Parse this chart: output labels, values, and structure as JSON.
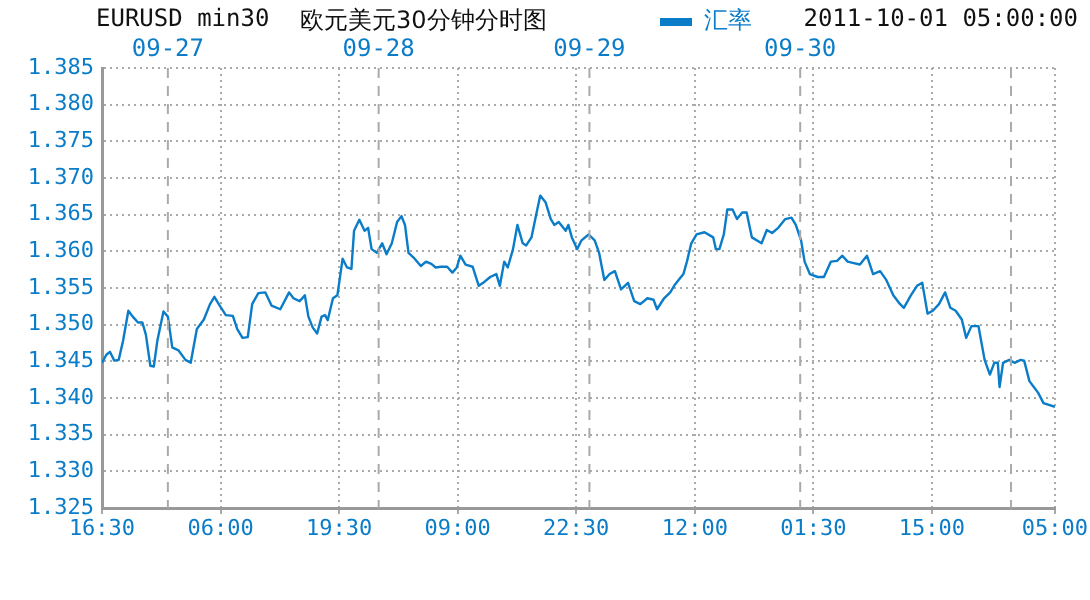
{
  "chart_data": {
    "type": "line",
    "title": "欧元美元30分钟分时图",
    "subtitle": "EURUSD min30",
    "annotations": [
      "2011-10-01 05:00:00"
    ],
    "legend": "top",
    "grid": true,
    "marker": "none",
    "line_style": "solid",
    "xlim": [
      "2011-09-26T16:30",
      "2011-10-01T05:00"
    ],
    "xticks": [
      {
        "value": "2011-09-26T16:30",
        "label": "16:30"
      },
      {
        "value": "2011-09-27T06:00",
        "label": "06:00"
      },
      {
        "value": "2011-09-27T19:30",
        "label": "19:30"
      },
      {
        "value": "2011-09-28T09:00",
        "label": "09:00"
      },
      {
        "value": "2011-09-28T22:30",
        "label": "22:30"
      },
      {
        "value": "2011-09-29T12:00",
        "label": "12:00"
      },
      {
        "value": "2011-09-30T01:30",
        "label": "01:30"
      },
      {
        "value": "2011-09-30T15:00",
        "label": "15:00"
      },
      {
        "value": "2011-10-01T05:00",
        "label": "05:00"
      }
    ],
    "ylim": [
      1.325,
      1.385
    ],
    "yticks": [
      {
        "value": 1.325,
        "label": "1.325"
      },
      {
        "value": 1.33,
        "label": "1.330"
      },
      {
        "value": 1.335,
        "label": "1.335"
      },
      {
        "value": 1.34,
        "label": "1.340"
      },
      {
        "value": 1.345,
        "label": "1.345"
      },
      {
        "value": 1.35,
        "label": "1.350"
      },
      {
        "value": 1.355,
        "label": "1.355"
      },
      {
        "value": 1.36,
        "label": "1.360"
      },
      {
        "value": 1.365,
        "label": "1.365"
      },
      {
        "value": 1.37,
        "label": "1.370"
      },
      {
        "value": 1.375,
        "label": "1.375"
      },
      {
        "value": 1.38,
        "label": "1.380"
      },
      {
        "value": 1.385,
        "label": "1.385"
      }
    ],
    "ref_lines": [
      {
        "axis": "x",
        "value": "2011-09-27",
        "label": "09-27",
        "color": "#aaaaaa",
        "line_style": "dashed"
      },
      {
        "axis": "x",
        "value": "2011-09-28",
        "label": "09-28",
        "color": "#aaaaaa",
        "line_style": "dashed"
      },
      {
        "axis": "x",
        "value": "2011-09-29",
        "label": "09-29",
        "color": "#aaaaaa",
        "line_style": "dashed"
      },
      {
        "axis": "x",
        "value": "2011-09-30",
        "label": "09-30",
        "color": "#aaaaaa",
        "line_style": "dashed"
      },
      {
        "axis": "x",
        "value": "2011-10-01",
        "label": null,
        "color": "#aaaaaa",
        "line_style": "dashed"
      }
    ],
    "series": [
      {
        "name": "汇率",
        "color": "#0a7cc8",
        "x": [
          "2011-09-26T16:30",
          "2011-09-26T17:00",
          "2011-09-26T17:24",
          "2011-09-26T17:54",
          "2011-09-26T18:24",
          "2011-09-26T18:54",
          "2011-09-26T19:30",
          "2011-09-26T20:00",
          "2011-09-26T20:36",
          "2011-09-26T21:06",
          "2011-09-26T21:30",
          "2011-09-26T22:00",
          "2011-09-26T22:24",
          "2011-09-26T22:48",
          "2011-09-26T23:30",
          "2011-09-27T00:00",
          "2011-09-27T00:30",
          "2011-09-27T01:12",
          "2011-09-27T02:00",
          "2011-09-27T02:36",
          "2011-09-27T03:18",
          "2011-09-27T04:06",
          "2011-09-27T04:48",
          "2011-09-27T05:18",
          "2011-09-27T05:54",
          "2011-09-27T06:36",
          "2011-09-27T07:24",
          "2011-09-27T07:54",
          "2011-09-27T08:30",
          "2011-09-27T09:06",
          "2011-09-27T09:36",
          "2011-09-27T10:18",
          "2011-09-27T11:06",
          "2011-09-27T11:48",
          "2011-09-27T12:48",
          "2011-09-27T13:48",
          "2011-09-27T14:18",
          "2011-09-27T15:00",
          "2011-09-27T15:36",
          "2011-09-27T16:00",
          "2011-09-27T16:30",
          "2011-09-27T17:00",
          "2011-09-27T17:30",
          "2011-09-27T17:54",
          "2011-09-27T18:12",
          "2011-09-27T18:48",
          "2011-09-27T19:18",
          "2011-09-27T19:54",
          "2011-09-27T20:24",
          "2011-09-27T20:54",
          "2011-09-27T21:12",
          "2011-09-27T21:48",
          "2011-09-27T22:24",
          "2011-09-27T22:48",
          "2011-09-27T23:12",
          "2011-09-27T23:48",
          "2011-09-28T00:24",
          "2011-09-28T00:54",
          "2011-09-28T01:30",
          "2011-09-28T02:06",
          "2011-09-28T02:36",
          "2011-09-28T03:00",
          "2011-09-28T03:24",
          "2011-09-28T04:06",
          "2011-09-28T04:48",
          "2011-09-28T05:24",
          "2011-09-28T06:00",
          "2011-09-28T06:30",
          "2011-09-28T07:06",
          "2011-09-28T07:48",
          "2011-09-28T08:24",
          "2011-09-28T08:54",
          "2011-09-28T09:18",
          "2011-09-28T09:54",
          "2011-09-28T10:42",
          "2011-09-28T11:24",
          "2011-09-28T11:54",
          "2011-09-28T12:42",
          "2011-09-28T13:24",
          "2011-09-28T13:48",
          "2011-09-28T14:18",
          "2011-09-28T14:42",
          "2011-09-28T15:18",
          "2011-09-28T15:48",
          "2011-09-28T16:24",
          "2011-09-28T16:48",
          "2011-09-28T17:24",
          "2011-09-28T17:54",
          "2011-09-28T18:24",
          "2011-09-28T19:00",
          "2011-09-28T19:36",
          "2011-09-28T20:00",
          "2011-09-28T20:30",
          "2011-09-28T21:18",
          "2011-09-28T21:36",
          "2011-09-28T22:00",
          "2011-09-28T22:36",
          "2011-09-28T23:06",
          "2011-09-28T23:54",
          "2011-09-29T00:36",
          "2011-09-29T01:06",
          "2011-09-29T01:42",
          "2011-09-29T02:18",
          "2011-09-29T02:54",
          "2011-09-29T03:36",
          "2011-09-29T04:24",
          "2011-09-29T05:06",
          "2011-09-29T05:48",
          "2011-09-29T06:36",
          "2011-09-29T07:18",
          "2011-09-29T07:42",
          "2011-09-29T08:30",
          "2011-09-29T09:12",
          "2011-09-29T09:42",
          "2011-09-29T10:42",
          "2011-09-29T11:06",
          "2011-09-29T11:36",
          "2011-09-29T12:12",
          "2011-09-29T13:06",
          "2011-09-29T14:06",
          "2011-09-29T14:24",
          "2011-09-29T14:48",
          "2011-09-29T15:18",
          "2011-09-29T15:42",
          "2011-09-29T16:18",
          "2011-09-29T16:48",
          "2011-09-29T17:24",
          "2011-09-29T17:54",
          "2011-09-29T18:30",
          "2011-09-29T19:36",
          "2011-09-29T20:12",
          "2011-09-29T20:48",
          "2011-09-29T21:30",
          "2011-09-29T22:18",
          "2011-09-29T23:00",
          "2011-09-29T23:30",
          "2011-09-30T00:06",
          "2011-09-30T00:30",
          "2011-09-30T01:06",
          "2011-09-30T02:00",
          "2011-09-30T02:42",
          "2011-09-30T03:30",
          "2011-09-30T04:12",
          "2011-09-30T04:48",
          "2011-09-30T05:24",
          "2011-09-30T06:06",
          "2011-09-30T06:48",
          "2011-09-30T07:36",
          "2011-09-30T08:18",
          "2011-09-30T09:06",
          "2011-09-30T09:48",
          "2011-09-30T10:36",
          "2011-09-30T11:18",
          "2011-09-30T11:48",
          "2011-09-30T12:36",
          "2011-09-30T13:18",
          "2011-09-30T13:54",
          "2011-09-30T14:30",
          "2011-09-30T15:06",
          "2011-09-30T15:48",
          "2011-09-30T16:30",
          "2011-09-30T17:06",
          "2011-09-30T17:42",
          "2011-09-30T18:24",
          "2011-09-30T18:54",
          "2011-09-30T19:30",
          "2011-09-30T20:18",
          "2011-09-30T20:36",
          "2011-09-30T21:00",
          "2011-09-30T21:36",
          "2011-09-30T22:06",
          "2011-09-30T22:30",
          "2011-09-30T22:42",
          "2011-09-30T23:06",
          "2011-09-30T23:48",
          "2011-10-01T00:24",
          "2011-10-01T01:06",
          "2011-10-01T01:30",
          "2011-10-01T02:06",
          "2011-10-01T02:36",
          "2011-10-01T03:06",
          "2011-10-01T03:42",
          "2011-10-01T05:00"
        ],
        "values": [
          1.3448,
          1.3459,
          1.3463,
          1.3451,
          1.3452,
          1.3478,
          1.3519,
          1.3511,
          1.3503,
          1.3503,
          1.3486,
          1.3444,
          1.3443,
          1.3478,
          1.3518,
          1.3511,
          1.3469,
          1.3465,
          1.3452,
          1.3448,
          1.3494,
          1.3507,
          1.3528,
          1.3538,
          1.3526,
          1.3513,
          1.3512,
          1.3494,
          1.3482,
          1.3483,
          1.3528,
          1.3543,
          1.3544,
          1.3526,
          1.3521,
          1.3544,
          1.3536,
          1.3532,
          1.354,
          1.3511,
          1.3496,
          1.3488,
          1.3511,
          1.3513,
          1.3506,
          1.3536,
          1.354,
          1.359,
          1.3578,
          1.3576,
          1.3628,
          1.3643,
          1.3628,
          1.3632,
          1.3603,
          1.3598,
          1.3611,
          1.3596,
          1.3611,
          1.364,
          1.3648,
          1.3636,
          1.3598,
          1.359,
          1.358,
          1.3586,
          1.3583,
          1.3578,
          1.3579,
          1.3579,
          1.3571,
          1.3578,
          1.3594,
          1.3582,
          1.3579,
          1.3553,
          1.3557,
          1.3565,
          1.3569,
          1.3553,
          1.3586,
          1.3578,
          1.3603,
          1.3636,
          1.3611,
          1.3608,
          1.3619,
          1.3648,
          1.3676,
          1.3667,
          1.3644,
          1.3636,
          1.364,
          1.3628,
          1.3636,
          1.3619,
          1.3603,
          1.3615,
          1.3623,
          1.3615,
          1.3598,
          1.3561,
          1.3569,
          1.3573,
          1.3548,
          1.3557,
          1.3532,
          1.3528,
          1.3536,
          1.3534,
          1.3521,
          1.3536,
          1.3544,
          1.3554,
          1.3569,
          1.3586,
          1.3611,
          1.3623,
          1.3626,
          1.3619,
          1.3603,
          1.3603,
          1.3623,
          1.3657,
          1.3657,
          1.3644,
          1.3653,
          1.3653,
          1.3619,
          1.3611,
          1.3629,
          1.3625,
          1.3632,
          1.3644,
          1.3646,
          1.3636,
          1.3615,
          1.3586,
          1.3569,
          1.3565,
          1.3565,
          1.3586,
          1.3587,
          1.3594,
          1.3586,
          1.3584,
          1.3582,
          1.3594,
          1.3569,
          1.3573,
          1.3561,
          1.354,
          1.3529,
          1.3523,
          1.354,
          1.3553,
          1.3557,
          1.3515,
          1.3519,
          1.3528,
          1.3544,
          1.3523,
          1.3519,
          1.3507,
          1.3482,
          1.3498,
          1.3498,
          1.3478,
          1.3452,
          1.3432,
          1.3448,
          1.3448,
          1.3415,
          1.3448,
          1.3452,
          1.3448,
          1.3452,
          1.3451,
          1.3423,
          1.3415,
          1.3407,
          1.3393,
          1.3388
        ]
      }
    ]
  }
}
